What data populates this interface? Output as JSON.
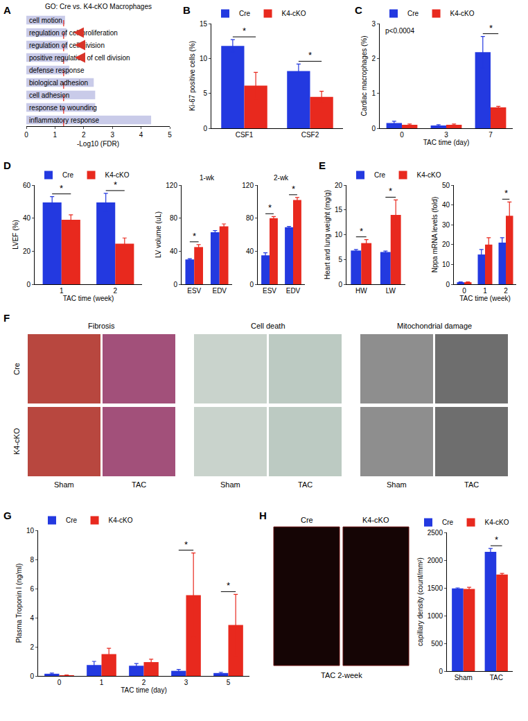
{
  "chart_data": [
    {
      "type": "bar",
      "panel": "A",
      "orientation": "horizontal",
      "title": "GO: Cre vs. K4-cKO Macrophages",
      "categories": [
        "cell motion",
        "regulation of cell proliferation",
        "regulation of cell division",
        "positive regulation of cell division",
        "defense response",
        "biological adhesion",
        "cell adhesion",
        "response to wounding",
        "inflammatory response"
      ],
      "values": [
        1.35,
        1.4,
        1.45,
        1.45,
        1.5,
        2.35,
        2.4,
        2.4,
        4.35
      ],
      "color": "#c9cbe9",
      "x_label": "-Log10 (FDR)",
      "xlim": [
        0,
        5
      ],
      "xticks": [
        0,
        1,
        2,
        3,
        4,
        5
      ],
      "threshold": 1.3,
      "arrows": [
        "regulation of cell proliferation",
        "regulation of cell division",
        "positive regulation of cell division"
      ],
      "tick_labels": "x"
    },
    {
      "type": "bar",
      "panel": "B",
      "categories": [
        "CSF1",
        "CSF2"
      ],
      "series": [
        {
          "name": "Cre",
          "color": "#2339e0",
          "values": [
            11.8,
            8.2
          ],
          "errors": [
            0.9,
            1.0
          ]
        },
        {
          "name": "K4-cKO",
          "color": "#e8291e",
          "values": [
            6.1,
            4.5
          ],
          "errors": [
            1.9,
            0.8
          ]
        }
      ],
      "y_label": "Ki-67 positive cells (%)",
      "ylim": [
        0,
        15
      ],
      "yticks": [
        0,
        5,
        10,
        15
      ],
      "legend": "top left",
      "significance": [
        {
          "category": "CSF1",
          "text": "*"
        },
        {
          "category": "CSF2",
          "text": "*"
        }
      ]
    },
    {
      "type": "bar",
      "panel": "C",
      "categories": [
        "0",
        "3",
        "7"
      ],
      "series": [
        {
          "name": "Cre",
          "color": "#2339e0",
          "values": [
            0.15,
            0.08,
            2.18
          ],
          "errors": [
            0.05,
            0.02,
            0.45
          ]
        },
        {
          "name": "K4-cKO",
          "color": "#e8291e",
          "values": [
            0.1,
            0.1,
            0.6
          ],
          "errors": [
            0.02,
            0.02,
            0.03
          ]
        }
      ],
      "x_label": "TAC time (day)",
      "y_label": "Cardiac macrophages (%)",
      "ylim": [
        0,
        3
      ],
      "yticks": [
        0,
        1,
        2,
        3
      ],
      "legend": "top left",
      "annotations": [
        {
          "text": "p<0.0004"
        }
      ],
      "significance": [
        {
          "category": "7",
          "text": "*"
        }
      ]
    },
    {
      "type": "bar",
      "panel": "D",
      "categories": [
        "1",
        "2"
      ],
      "series": [
        {
          "name": "Cre",
          "color": "#2339e0",
          "values": [
            49.5,
            49.5
          ],
          "errors": [
            3.5,
            5.5
          ]
        },
        {
          "name": "K4-cKO",
          "color": "#e8291e",
          "values": [
            39,
            24.5
          ],
          "errors": [
            3,
            3.5
          ]
        }
      ],
      "x_label": "TAC time (week)",
      "y_label": "LVEF (%)",
      "ylim": [
        0,
        60
      ],
      "yticks": [
        0,
        20,
        40,
        60
      ],
      "legend": "top left",
      "significance": [
        {
          "category": "1",
          "text": "*"
        },
        {
          "category": "2",
          "text": "*"
        }
      ]
    },
    {
      "type": "bar",
      "title": "1-wk",
      "categories": [
        "ESV",
        "EDV"
      ],
      "series": [
        {
          "color": "#2339e0",
          "values": [
            30,
            63
          ],
          "errors": [
            1,
            2
          ]
        },
        {
          "color": "#e8291e",
          "values": [
            45,
            70
          ],
          "errors": [
            3,
            3
          ]
        }
      ],
      "y_label": "LV volume (uL)",
      "ylim": [
        0,
        120
      ],
      "yticks": [
        0,
        40,
        80,
        120
      ],
      "significance": [
        {
          "category": "ESV",
          "text": "*"
        }
      ]
    },
    {
      "type": "bar",
      "title": "2-wk",
      "categories": [
        "ESV",
        "EDV"
      ],
      "series": [
        {
          "color": "#2339e0",
          "values": [
            35,
            69
          ],
          "errors": [
            3,
            1
          ]
        },
        {
          "color": "#e8291e",
          "values": [
            80,
            102
          ],
          "errors": [
            2,
            3
          ]
        }
      ],
      "ylim": [
        0,
        120
      ],
      "yticks": [
        0,
        40,
        80,
        120
      ],
      "significance": [
        {
          "category": "ESV",
          "text": "*"
        },
        {
          "category": "EDV",
          "text": "*"
        }
      ]
    },
    {
      "type": "bar",
      "panel": "E",
      "categories": [
        "HW",
        "LW"
      ],
      "series": [
        {
          "name": "Cre",
          "color": "#2339e0",
          "values": [
            6.8,
            6.5
          ],
          "errors": [
            0.2,
            0.2
          ]
        },
        {
          "name": "K4-cKO",
          "color": "#e8291e",
          "values": [
            8.3,
            14
          ],
          "errors": [
            0.7,
            3
          ]
        }
      ],
      "y_label": "Heart and lung weight (mg/g)",
      "ylim": [
        0,
        20
      ],
      "yticks": [
        0,
        5,
        10,
        15,
        20
      ],
      "legend": "top left",
      "significance": [
        {
          "category": "HW",
          "text": "*"
        },
        {
          "category": "LW",
          "text": "*"
        }
      ]
    },
    {
      "type": "bar",
      "categories": [
        "0",
        "1",
        "2"
      ],
      "series": [
        {
          "color": "#2339e0",
          "values": [
            1,
            15,
            21
          ],
          "errors": [
            0.2,
            2.5,
            2.5
          ]
        },
        {
          "color": "#e8291e",
          "values": [
            1,
            20,
            34.5
          ],
          "errors": [
            0.2,
            3.5,
            7
          ]
        }
      ],
      "x_label": "TAC time (week)",
      "y_label": "Nppa mRNA levels (fold)",
      "ylim": [
        0,
        50
      ],
      "yticks": [
        0,
        10,
        20,
        30,
        40,
        50
      ],
      "significance": [
        {
          "category": "2",
          "text": "*"
        }
      ]
    },
    {
      "type": "bar",
      "panel": "G",
      "categories": [
        "0",
        "1",
        "2",
        "3",
        "5"
      ],
      "series": [
        {
          "name": "Cre",
          "color": "#2339e0",
          "values": [
            0.15,
            0.75,
            0.7,
            0.35,
            0.2
          ],
          "errors": [
            0.05,
            0.25,
            0.15,
            0.1,
            0.05
          ]
        },
        {
          "name": "K4-cKO",
          "color": "#e8291e",
          "values": [
            0.05,
            1.5,
            0.95,
            5.55,
            3.5
          ],
          "errors": [
            0.02,
            0.4,
            0.2,
            2.9,
            2.1
          ]
        }
      ],
      "x_label": "TAC time (day)",
      "y_label": "Plasma Troponin I (ng/ml)",
      "ylim": [
        0,
        10
      ],
      "yticks": [
        0,
        2,
        4,
        6,
        8,
        10
      ],
      "legend": "top left",
      "significance": [
        {
          "category": "3",
          "text": "*"
        },
        {
          "category": "5",
          "text": "*"
        }
      ]
    },
    {
      "type": "bar",
      "categories": [
        "Sham",
        "TAC"
      ],
      "series": [
        {
          "name": "Cre",
          "color": "#2339e0",
          "values": [
            1490,
            2150
          ],
          "errors": [
            10,
            60
          ]
        },
        {
          "name": "K4-cKO",
          "color": "#e8291e",
          "values": [
            1480,
            1740
          ],
          "errors": [
            30,
            20
          ]
        }
      ],
      "y_label": "capillary density (count/mm²)",
      "ylim": [
        0,
        2500
      ],
      "yticks": [
        0,
        500,
        1000,
        1500,
        2000,
        2500
      ],
      "legend": "top right",
      "significance": [
        {
          "category": "TAC",
          "text": "*"
        }
      ]
    }
  ],
  "image_panels": [
    {
      "panel": "F",
      "columns": [
        "Fibrosis",
        "Cell death",
        "Mitochondrial damage"
      ],
      "rows": [
        "Cre",
        "K4-cKO"
      ],
      "conditions": [
        "Sham",
        "TAC"
      ]
    },
    {
      "panel": "H",
      "columns": [
        "Cre",
        "K4-cKO"
      ],
      "caption": "TAC 2-week"
    }
  ]
}
